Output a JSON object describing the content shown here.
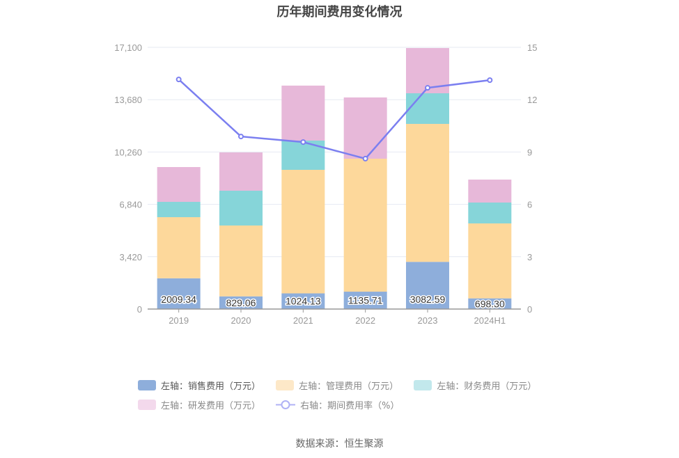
{
  "chart_data": {
    "type": "bar",
    "title": "历年期间费用变化情况",
    "categories": [
      "2019",
      "2020",
      "2021",
      "2022",
      "2023",
      "2024H1"
    ],
    "series": [
      {
        "name": "左轴：销售费用（万元）",
        "axis": "left",
        "color": "#8eaedb",
        "values": [
          2009.34,
          829.06,
          1024.13,
          1135.71,
          3082.59,
          698.3
        ],
        "labels": [
          "2009.34",
          "829.06",
          "1024.13",
          "1135.71",
          "3082.59",
          "698.30"
        ]
      },
      {
        "name": "左轴：管理费用（万元）",
        "axis": "left",
        "color": "#fdd89b",
        "values": [
          3994,
          4629,
          8072,
          8688,
          9015,
          4896
        ]
      },
      {
        "name": "左轴：财务费用（万元）",
        "axis": "left",
        "color": "#86d5d9",
        "values": [
          1000,
          2274,
          1910,
          0,
          2001,
          1364
        ]
      },
      {
        "name": "左轴：研发费用（万元）",
        "axis": "left",
        "color": "#e7b8d9",
        "values": [
          2274,
          2501,
          3593,
          4002,
          2956,
          1501
        ]
      },
      {
        "name": "右轴：期间费用率（%）",
        "axis": "right",
        "type": "line",
        "color": "#7b7ff0",
        "values": [
          13.16,
          9.89,
          9.57,
          8.62,
          12.68,
          13.12
        ]
      }
    ],
    "left_axis": {
      "ylim": [
        0,
        17100
      ],
      "ticks": [
        "0",
        "3,420",
        "6,840",
        "10,260",
        "13,680",
        "17,100"
      ],
      "tick_values": [
        0,
        3420,
        6840,
        10260,
        13680,
        17100
      ]
    },
    "right_axis": {
      "ylim": [
        0,
        15
      ],
      "ticks": [
        "0",
        "3",
        "6",
        "9",
        "12",
        "15"
      ],
      "tick_values": [
        0,
        3,
        6,
        9,
        12,
        15
      ]
    },
    "grid": true,
    "legend_position": "bottom"
  },
  "legend_colors": {
    "sales": "#8eaedb",
    "mgmt": "#fde8c8",
    "fin": "#c2e8ec",
    "rd": "#f3d9ec",
    "rate": "#b0b2f5"
  },
  "source": "数据来源：恒生聚源"
}
